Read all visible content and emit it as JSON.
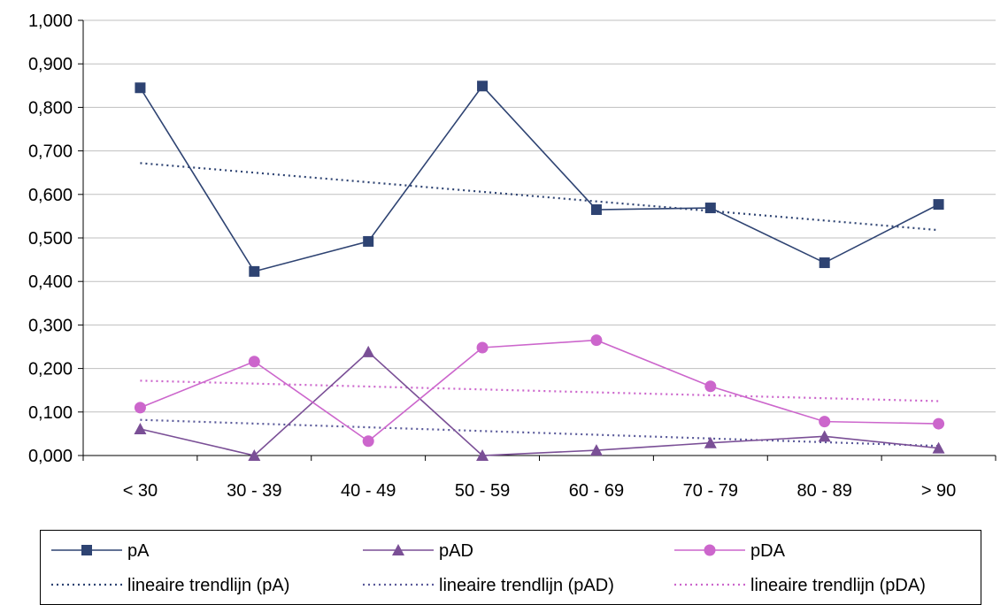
{
  "chart_data": {
    "type": "line",
    "categories": [
      "< 30",
      "30 - 39",
      "40 - 49",
      "50 - 59",
      "60 - 69",
      "70 - 79",
      "80 - 89",
      "> 90"
    ],
    "series": [
      {
        "name": "pA",
        "values": [
          0.845,
          0.423,
          0.492,
          0.849,
          0.565,
          0.569,
          0.443,
          0.577
        ],
        "color": "#2e4372",
        "marker": "square"
      },
      {
        "name": "pAD",
        "values": [
          0.061,
          0.0,
          0.238,
          0.0,
          0.012,
          0.029,
          0.044,
          0.017
        ],
        "color": "#7a4f96",
        "marker": "triangle"
      },
      {
        "name": "pDA",
        "values": [
          0.11,
          0.216,
          0.033,
          0.248,
          0.265,
          0.159,
          0.078,
          0.073
        ],
        "color": "#cc66cc",
        "marker": "circle"
      }
    ],
    "trendlines": [
      {
        "name": "lineaire trendlijn (pA)",
        "start": 0.672,
        "end": 0.518,
        "color": "#2e4372"
      },
      {
        "name": "lineaire trendlijn (pAD)",
        "start": 0.082,
        "end": 0.022,
        "color": "#5a5a9a"
      },
      {
        "name": "lineaire trendlijn (pDA)",
        "start": 0.172,
        "end": 0.125,
        "color": "#cc66cc"
      }
    ],
    "yticks": [
      "0,000",
      "0,100",
      "0,200",
      "0,300",
      "0,400",
      "0,500",
      "0,600",
      "0,700",
      "0,800",
      "0,900",
      "1,000"
    ],
    "ylim": [
      0,
      1
    ],
    "grid": "horizontal",
    "legend_position": "bottom",
    "title": "",
    "xlabel": "",
    "ylabel": ""
  }
}
